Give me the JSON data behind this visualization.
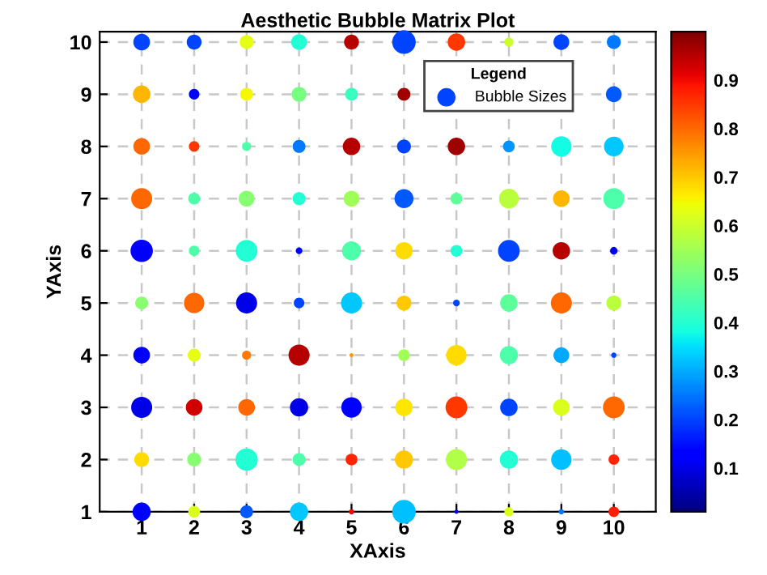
{
  "chart_data": {
    "type": "bubble",
    "title": "Aesthetic Bubble Matrix Plot",
    "xlabel": "XAxis",
    "ylabel": "YAxis",
    "xlim": [
      0.2,
      10.8
    ],
    "ylim": [
      1,
      10.2
    ],
    "xticks": [
      1,
      2,
      3,
      4,
      5,
      6,
      7,
      8,
      9,
      10
    ],
    "yticks": [
      1,
      2,
      3,
      4,
      5,
      6,
      7,
      8,
      9,
      10
    ],
    "grid": true,
    "legend": "top right",
    "legend_title": "Legend",
    "marker": "circle",
    "clim": [
      0.01,
      1.0
    ],
    "cticks": [
      0.1,
      0.2,
      0.3,
      0.4,
      0.5,
      0.6,
      0.7,
      0.8,
      0.9
    ],
    "series": [
      {
        "name": "Bubble Sizes",
        "x": [
          1,
          2,
          3,
          4,
          5,
          6,
          7,
          8,
          9,
          10,
          1,
          2,
          3,
          4,
          5,
          6,
          10,
          1,
          2,
          3,
          4,
          5,
          6,
          7,
          8,
          9,
          10,
          1,
          2,
          3,
          4,
          5,
          6,
          7,
          8,
          9,
          10,
          1,
          2,
          3,
          4,
          5,
          6,
          7,
          8,
          9,
          10,
          1,
          2,
          3,
          4,
          5,
          6,
          7,
          8,
          9,
          10,
          1,
          2,
          3,
          4,
          5,
          6,
          7,
          8,
          9,
          10,
          1,
          2,
          3,
          4,
          5,
          6,
          7,
          8,
          9,
          10,
          1,
          2,
          3,
          4,
          5,
          6,
          7,
          8,
          9,
          10,
          1,
          2,
          3,
          4,
          5,
          6,
          7,
          8,
          9,
          10
        ],
        "values": [
          10,
          10,
          10,
          10,
          10,
          10,
          10,
          10,
          10,
          10,
          9,
          9,
          9,
          9,
          9,
          9,
          9,
          8,
          8,
          8,
          8,
          8,
          8,
          8,
          8,
          8,
          8,
          7,
          7,
          7,
          7,
          7,
          7,
          7,
          7,
          7,
          7,
          6,
          6,
          6,
          6,
          6,
          6,
          6,
          6,
          6,
          6,
          5,
          5,
          5,
          5,
          5,
          5,
          5,
          5,
          5,
          5,
          4,
          4,
          4,
          4,
          4,
          4,
          4,
          4,
          4,
          4,
          3,
          3,
          3,
          3,
          3,
          3,
          3,
          3,
          3,
          3,
          2,
          2,
          2,
          2,
          2,
          2,
          2,
          2,
          2,
          2,
          1,
          1,
          1,
          1,
          1,
          1,
          1,
          1,
          1,
          1
        ],
        "sizes": [
          0.5,
          0.4,
          0.35,
          0.45,
          0.4,
          1.0,
          0.55,
          0.15,
          0.45,
          0.35,
          0.55,
          0.2,
          0.3,
          0.4,
          0.3,
          0.3,
          0.45,
          0.5,
          0.2,
          0.15,
          0.3,
          0.55,
          0.35,
          0.55,
          0.25,
          0.75,
          0.7,
          0.8,
          0.25,
          0.45,
          0.3,
          0.45,
          0.65,
          0.25,
          0.7,
          0.5,
          0.8,
          0.9,
          0.2,
          0.85,
          0.08,
          0.65,
          0.55,
          0.25,
          0.85,
          0.55,
          0.1,
          0.3,
          0.75,
          0.8,
          0.2,
          0.8,
          0.4,
          0.08,
          0.55,
          0.8,
          0.4,
          0.5,
          0.3,
          0.15,
          0.8,
          0.03,
          0.25,
          0.75,
          0.6,
          0.45,
          0.05,
          0.8,
          0.5,
          0.5,
          0.6,
          0.75,
          0.55,
          0.85,
          0.55,
          0.5,
          0.85,
          0.4,
          0.35,
          0.9,
          0.3,
          0.25,
          0.6,
          0.8,
          0.6,
          0.75,
          0.2,
          0.6,
          0.25,
          0.3,
          0.6,
          0.05,
          1.0,
          0.03,
          0.15,
          0.05,
          0.2
        ],
        "cvalues": [
          0.2,
          0.2,
          0.63,
          0.4,
          0.95,
          0.2,
          0.85,
          0.6,
          0.2,
          0.25,
          0.72,
          0.12,
          0.65,
          0.5,
          0.42,
          0.97,
          0.22,
          0.8,
          0.85,
          0.45,
          0.25,
          0.95,
          0.2,
          0.97,
          0.28,
          0.38,
          0.33,
          0.8,
          0.45,
          0.52,
          0.4,
          0.55,
          0.22,
          0.47,
          0.58,
          0.72,
          0.45,
          0.12,
          0.45,
          0.4,
          0.12,
          0.45,
          0.68,
          0.4,
          0.2,
          0.95,
          0.1,
          0.52,
          0.8,
          0.1,
          0.2,
          0.33,
          0.7,
          0.2,
          0.47,
          0.8,
          0.58,
          0.12,
          0.63,
          0.78,
          0.95,
          0.75,
          0.55,
          0.68,
          0.45,
          0.3,
          0.2,
          0.1,
          0.93,
          0.8,
          0.1,
          0.12,
          0.67,
          0.85,
          0.2,
          0.62,
          0.8,
          0.68,
          0.52,
          0.4,
          0.45,
          0.87,
          0.7,
          0.57,
          0.4,
          0.32,
          0.87,
          0.12,
          0.62,
          0.22,
          0.33,
          0.9,
          0.32,
          0.1,
          0.62,
          0.25,
          0.88
        ]
      }
    ]
  }
}
